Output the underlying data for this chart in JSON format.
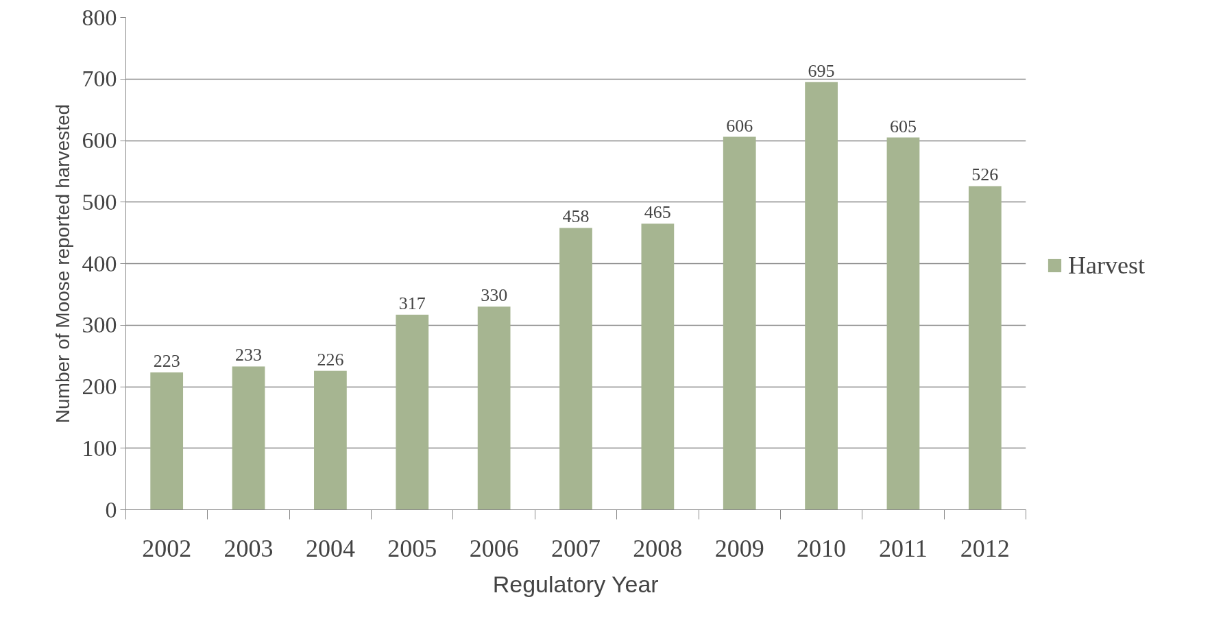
{
  "chart_data": {
    "type": "bar",
    "xlabel": "Regulatory Year",
    "ylabel": "Number of Moose reported harvested",
    "categories": [
      "2002",
      "2003",
      "2004",
      "2005",
      "2006",
      "2007",
      "2008",
      "2009",
      "2010",
      "2011",
      "2012"
    ],
    "series": [
      {
        "name": "Harvest",
        "color": "#a6b591",
        "values": [
          223,
          233,
          226,
          317,
          330,
          458,
          465,
          606,
          695,
          605,
          526
        ]
      }
    ],
    "ylim": [
      0,
      800
    ],
    "yticks": [
      0,
      100,
      200,
      300,
      400,
      500,
      600,
      700,
      800
    ],
    "grid": "y",
    "legend": "right",
    "data_labels": true
  }
}
